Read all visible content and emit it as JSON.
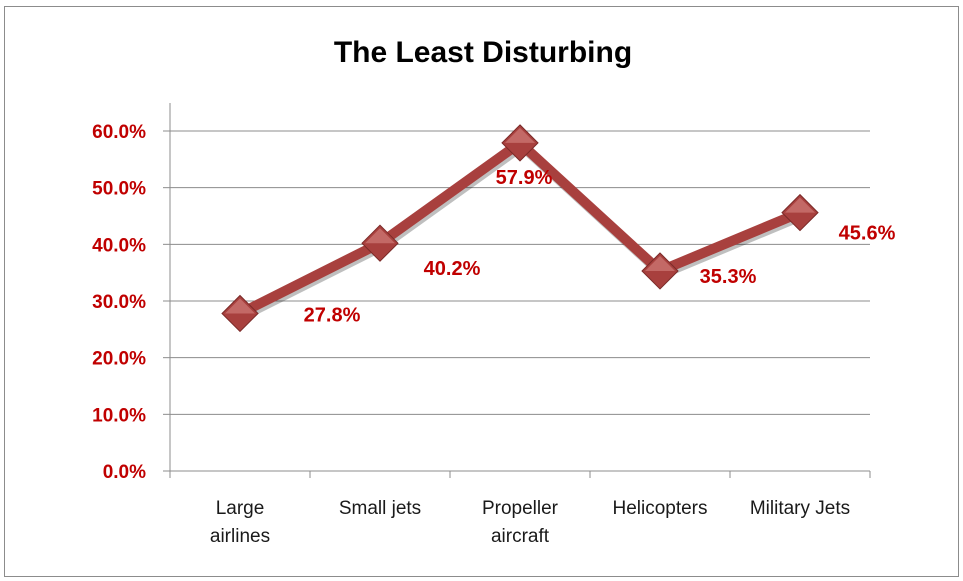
{
  "chart_data": {
    "type": "line",
    "title": "The Least Disturbing",
    "categories": [
      [
        "Large",
        "airlines"
      ],
      [
        "Small jets"
      ],
      [
        "Propeller",
        "aircraft"
      ],
      [
        "Helicopters"
      ],
      [
        "Military Jets"
      ]
    ],
    "series": [
      {
        "values": [
          27.8,
          40.2,
          57.9,
          35.3,
          45.6
        ]
      }
    ],
    "data_labels": [
      "27.8%",
      "40.2%",
      "57.9%",
      "35.3%",
      "45.6%"
    ],
    "y_ticks": [
      0,
      10,
      20,
      30,
      40,
      50,
      60
    ],
    "y_tick_labels": [
      "0.0%",
      "10.0%",
      "20.0%",
      "30.0%",
      "40.0%",
      "50.0%",
      "60.0%"
    ],
    "ylim": [
      0,
      60
    ],
    "grid": true,
    "legend": "none",
    "colors": {
      "line": "#a8403e",
      "marker": "#a8403e",
      "marker_highlight": "#d98a86",
      "tick_labels": "#c00000",
      "data_labels": "#c00000",
      "grid": "#8c8c8c"
    }
  }
}
